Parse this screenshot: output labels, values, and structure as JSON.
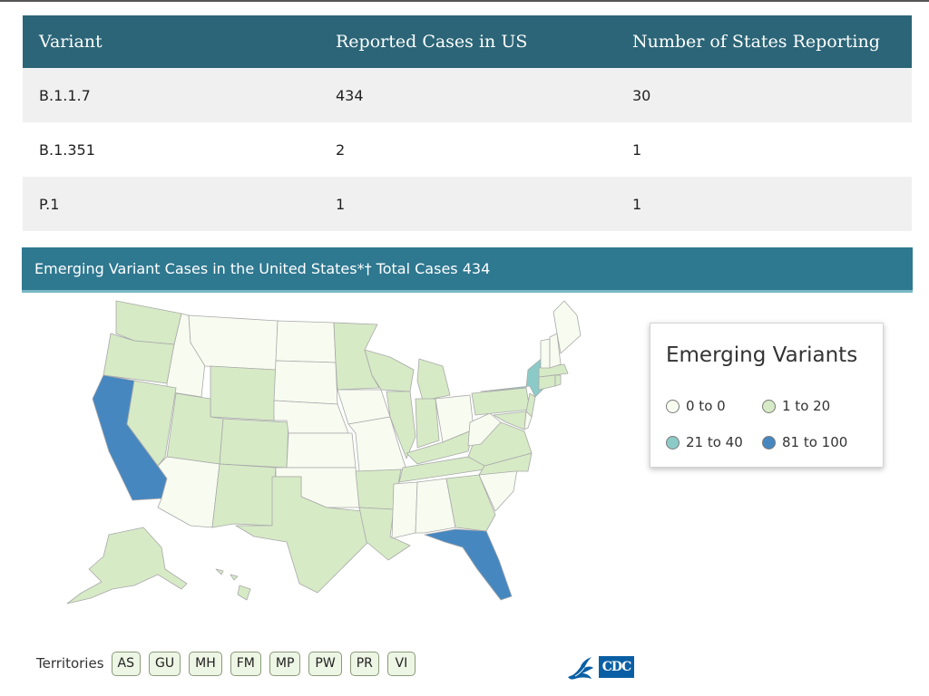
{
  "table": {
    "headers": [
      "Variant",
      "Reported Cases in US",
      "Number of States Reporting"
    ],
    "rows": [
      [
        "B.1.1.7",
        "434",
        "30"
      ],
      [
        "B.1.351",
        "2",
        "1"
      ],
      [
        "P.1",
        "1",
        "1"
      ]
    ]
  },
  "banner": {
    "title": "Emerging Variant Cases in the United States*† Total Cases 434"
  },
  "legend": {
    "title": "Emerging Variants",
    "items": [
      {
        "label": "0 to 0",
        "color": "#f8fbf0"
      },
      {
        "label": "1 to 20",
        "color": "#d6eac6"
      },
      {
        "label": "21 to 40",
        "color": "#8ccac8"
      },
      {
        "label": "81 to 100",
        "color": "#4787c0"
      }
    ]
  },
  "map": {
    "state_colors": {
      "none": "#f8fbf0",
      "low": "#d6eac6",
      "mid": "#8ccac8",
      "high": "#4787c0"
    },
    "highlighted": {
      "high": [
        "CA",
        "FL"
      ],
      "mid": [
        "NY"
      ]
    }
  },
  "territories": {
    "label": "Territories",
    "items": [
      "AS",
      "GU",
      "MH",
      "FM",
      "MP",
      "PW",
      "PR",
      "VI"
    ]
  },
  "logo": {
    "text": "CDC",
    "icon": "hhs-eagle-icon"
  }
}
